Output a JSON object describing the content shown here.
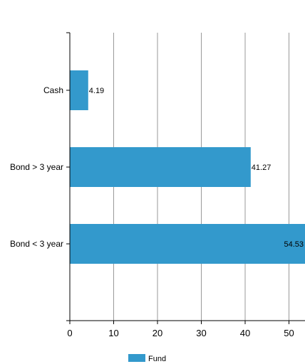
{
  "chart_data": {
    "type": "bar",
    "orientation": "horizontal",
    "categories": [
      "Cash",
      "Bond > 3 year",
      "Bond < 3 year"
    ],
    "series": [
      {
        "name": "Fund",
        "values": [
          4.19,
          41.27,
          54.53
        ]
      }
    ],
    "value_labels": [
      "4.19",
      "41.27",
      "54.53"
    ],
    "x_ticks": [
      "0",
      "10",
      "20",
      "30",
      "40",
      "50"
    ],
    "xlim": [
      0,
      54.53
    ],
    "grid": "vertical",
    "legend_position": "bottom-center",
    "colors": {
      "bar": "#3399cc",
      "grid": "#999999",
      "axis": "#000000"
    }
  }
}
